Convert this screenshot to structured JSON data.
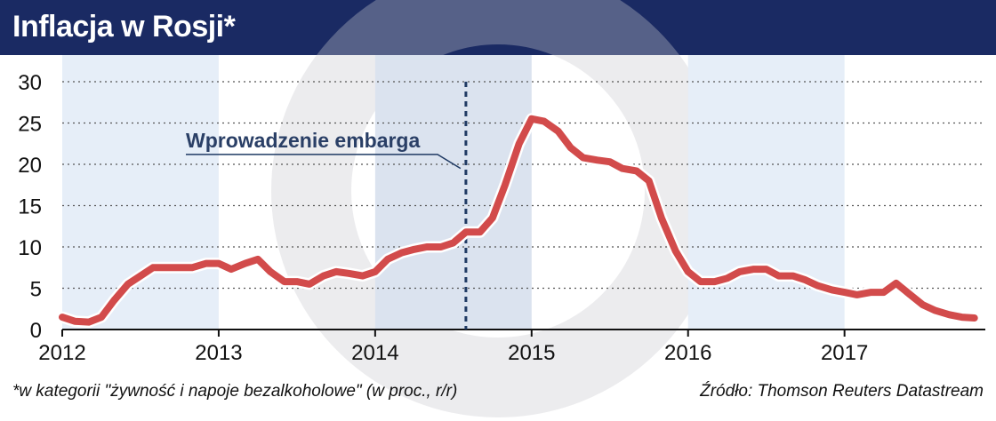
{
  "title": "Inflacja w Rosji*",
  "footnote": "*w kategorii \"żywność i napoje bezalkoholowe\" (w proc., r/r)",
  "source": "Źródło: Thomson Reuters Datastream",
  "colors": {
    "header_bg": "#1a2a63",
    "line": "#d24b4b",
    "band_light": "#e6eef8",
    "band_dark": "#dbe3ef",
    "marker": "#1f3a63",
    "annotation_text": "#2a3f66"
  },
  "chart_data": {
    "type": "line",
    "title": "Inflacja w Rosji*",
    "xlabel": "",
    "ylabel": "",
    "ylim": [
      0,
      30
    ],
    "yticks": [
      0,
      5,
      10,
      15,
      20,
      25,
      30
    ],
    "xlim": [
      2012.0,
      2017.9
    ],
    "xticks": [
      2012,
      2013,
      2014,
      2015,
      2016,
      2017
    ],
    "x_tick_labels": [
      "2012",
      "2013",
      "2014",
      "2015",
      "2016",
      "2017"
    ],
    "grid": "horizontal dotted",
    "shaded_years": [
      {
        "from": 2012,
        "to": 2013,
        "shade": "light"
      },
      {
        "from": 2014,
        "to": 2015,
        "shade": "dark"
      },
      {
        "from": 2016,
        "to": 2017,
        "shade": "light"
      }
    ],
    "annotation": {
      "label": "Wprowadzenie embarga",
      "x": 2014.58
    },
    "series": [
      {
        "x": [
          2012.0,
          2012.08,
          2012.17,
          2012.25,
          2012.33,
          2012.42,
          2012.5,
          2012.58,
          2012.67,
          2012.75,
          2012.83,
          2012.92,
          2013.0,
          2013.08,
          2013.17,
          2013.25,
          2013.33,
          2013.42,
          2013.5,
          2013.58,
          2013.67,
          2013.75,
          2013.83,
          2013.92,
          2014.0,
          2014.08,
          2014.17,
          2014.25,
          2014.33,
          2014.42,
          2014.5,
          2014.58,
          2014.67,
          2014.75,
          2014.83,
          2014.92,
          2015.0,
          2015.08,
          2015.17,
          2015.25,
          2015.33,
          2015.42,
          2015.5,
          2015.58,
          2015.67,
          2015.75,
          2015.83,
          2015.92,
          2016.0,
          2016.08,
          2016.17,
          2016.25,
          2016.33,
          2016.42,
          2016.5,
          2016.58,
          2016.67,
          2016.75,
          2016.83,
          2016.92,
          2017.0,
          2017.08,
          2017.17,
          2017.25,
          2017.33,
          2017.42,
          2017.5,
          2017.58,
          2017.67,
          2017.75,
          2017.83
        ],
        "values": [
          1.5,
          1.0,
          0.9,
          1.5,
          3.5,
          5.5,
          6.5,
          7.5,
          7.5,
          7.5,
          7.5,
          8.0,
          8.0,
          7.3,
          8.0,
          8.5,
          7.0,
          5.8,
          5.8,
          5.5,
          6.5,
          7.0,
          6.8,
          6.5,
          7.0,
          8.5,
          9.3,
          9.7,
          10.0,
          10.0,
          10.5,
          11.8,
          11.8,
          13.5,
          17.5,
          22.5,
          25.5,
          25.2,
          24.0,
          22.0,
          20.8,
          20.5,
          20.3,
          19.5,
          19.2,
          18.0,
          13.5,
          9.5,
          7.0,
          5.8,
          5.8,
          6.2,
          7.0,
          7.3,
          7.3,
          6.5,
          6.5,
          6.0,
          5.3,
          4.8,
          4.5,
          4.2,
          4.5,
          4.5,
          5.6,
          4.2,
          3.0,
          2.3,
          1.8,
          1.5,
          1.4
        ]
      }
    ]
  }
}
